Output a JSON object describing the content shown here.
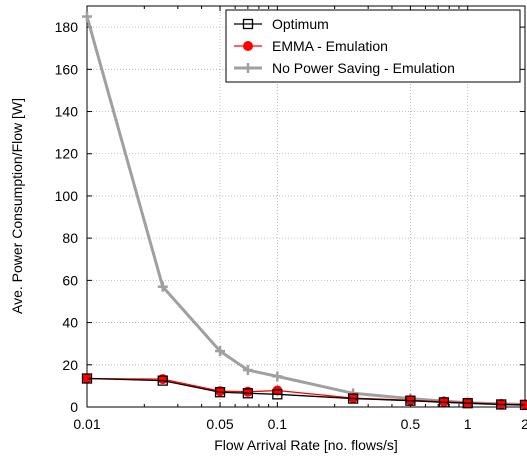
{
  "chart_data": {
    "type": "line",
    "xlabel": "Flow Arrival Rate [no. flows/s]",
    "ylabel": "Ave. Power Consumption/Flow [W]",
    "x_scale": "log",
    "xlim": [
      0.01,
      2
    ],
    "ylim": [
      0,
      190
    ],
    "x_ticks": [
      0.01,
      0.05,
      0.1,
      0.5,
      1,
      2
    ],
    "x_tick_labels": [
      "0.01",
      "0.05",
      "0.1",
      "0.5",
      "1",
      "2"
    ],
    "y_ticks": [
      0,
      20,
      40,
      60,
      80,
      100,
      120,
      140,
      160,
      180
    ],
    "y_tick_labels": [
      "0",
      "20",
      "40",
      "60",
      "80",
      "100",
      "120",
      "140",
      "160",
      "180"
    ],
    "grid": true,
    "legend_position": "top-right",
    "x": [
      0.01,
      0.025,
      0.05,
      0.07,
      0.1,
      0.25,
      0.5,
      0.75,
      1,
      1.5,
      2
    ],
    "series": [
      {
        "name": "Optimum",
        "color": "#000000",
        "marker": "open-square",
        "values": [
          13.5,
          12.5,
          7.0,
          6.5,
          6.0,
          4.0,
          3.0,
          2.2,
          1.8,
          1.2,
          1.0
        ]
      },
      {
        "name": "EMMA - Emulation",
        "color": "#ff0000",
        "marker": "filled-circle",
        "values": [
          13.5,
          13.2,
          7.5,
          7.2,
          7.8,
          4.2,
          3.2,
          2.5,
          2.0,
          1.3,
          1.1
        ]
      },
      {
        "name": "No Power Saving - Emulation",
        "color": "#a0a0a0",
        "marker": "plus",
        "values": [
          185,
          57,
          26.5,
          17.5,
          14.5,
          6.5,
          4.0,
          2.8,
          2.0,
          1.5,
          1.2
        ]
      }
    ]
  }
}
